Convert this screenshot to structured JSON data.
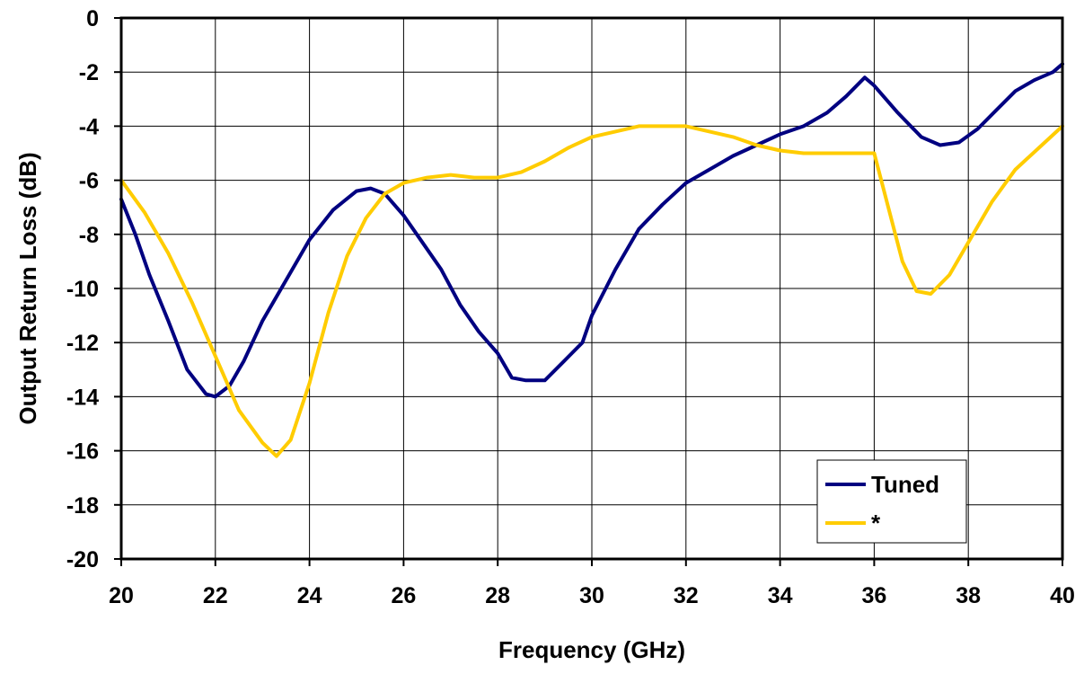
{
  "chart_data": {
    "type": "line",
    "xlabel": "Frequency (GHz)",
    "ylabel": "Output Return Loss (dB)",
    "xlim": [
      20,
      40
    ],
    "ylim": [
      -20,
      0
    ],
    "x_ticks": [
      "20",
      "22",
      "24",
      "26",
      "28",
      "30",
      "32",
      "34",
      "36",
      "38",
      "40"
    ],
    "y_ticks": [
      "0",
      "-2",
      "-4",
      "-6",
      "-8",
      "-10",
      "-12",
      "-14",
      "-16",
      "-18",
      "-20"
    ],
    "grid": true,
    "legend_position": "bottom-right",
    "series": [
      {
        "name": "Tuned",
        "color": "#000080",
        "x": [
          20,
          20.3,
          20.6,
          21,
          21.4,
          21.8,
          22,
          22.3,
          22.6,
          23,
          23.5,
          24,
          24.5,
          25,
          25.3,
          25.6,
          26,
          26.4,
          26.8,
          27.2,
          27.6,
          28,
          28.3,
          28.6,
          29,
          29.4,
          29.8,
          30,
          30.5,
          31,
          31.5,
          32,
          32.5,
          33,
          33.5,
          34,
          34.5,
          35,
          35.4,
          35.8,
          36,
          36.5,
          37,
          37.4,
          37.8,
          38.2,
          38.6,
          39,
          39.4,
          39.8,
          40
        ],
        "y": [
          -6.7,
          -8,
          -9.5,
          -11.2,
          -13,
          -13.9,
          -14,
          -13.6,
          -12.7,
          -11.2,
          -9.7,
          -8.2,
          -7.1,
          -6.4,
          -6.3,
          -6.5,
          -7.3,
          -8.3,
          -9.3,
          -10.6,
          -11.6,
          -12.4,
          -13.3,
          -13.4,
          -13.4,
          -12.7,
          -12,
          -11,
          -9.3,
          -7.8,
          -6.9,
          -6.1,
          -5.6,
          -5.1,
          -4.7,
          -4.3,
          -4,
          -3.5,
          -2.9,
          -2.2,
          -2.5,
          -3.5,
          -4.4,
          -4.7,
          -4.6,
          -4.1,
          -3.4,
          -2.7,
          -2.3,
          -2,
          -1.7
        ]
      },
      {
        "name": "*",
        "color": "#FFCC00",
        "x": [
          20,
          20.5,
          21,
          21.5,
          22,
          22.5,
          23,
          23.3,
          23.6,
          24,
          24.4,
          24.8,
          25.2,
          25.6,
          26,
          26.5,
          27,
          27.5,
          28,
          28.5,
          29,
          29.5,
          30,
          30.5,
          31,
          31.5,
          32,
          32.5,
          33,
          33.5,
          34,
          34.5,
          35,
          35.5,
          36,
          36.3,
          36.6,
          36.9,
          37.2,
          37.6,
          38,
          38.5,
          39,
          39.5,
          40
        ],
        "y": [
          -6,
          -7.2,
          -8.7,
          -10.5,
          -12.5,
          -14.5,
          -15.7,
          -16.2,
          -15.6,
          -13.5,
          -10.9,
          -8.8,
          -7.4,
          -6.5,
          -6.1,
          -5.9,
          -5.8,
          -5.9,
          -5.9,
          -5.7,
          -5.3,
          -4.8,
          -4.4,
          -4.2,
          -4,
          -4,
          -4,
          -4.2,
          -4.4,
          -4.7,
          -4.9,
          -5,
          -5,
          -5,
          -5,
          -7,
          -9,
          -10.1,
          -10.2,
          -9.5,
          -8.3,
          -6.8,
          -5.6,
          -4.8,
          -4
        ]
      }
    ]
  }
}
